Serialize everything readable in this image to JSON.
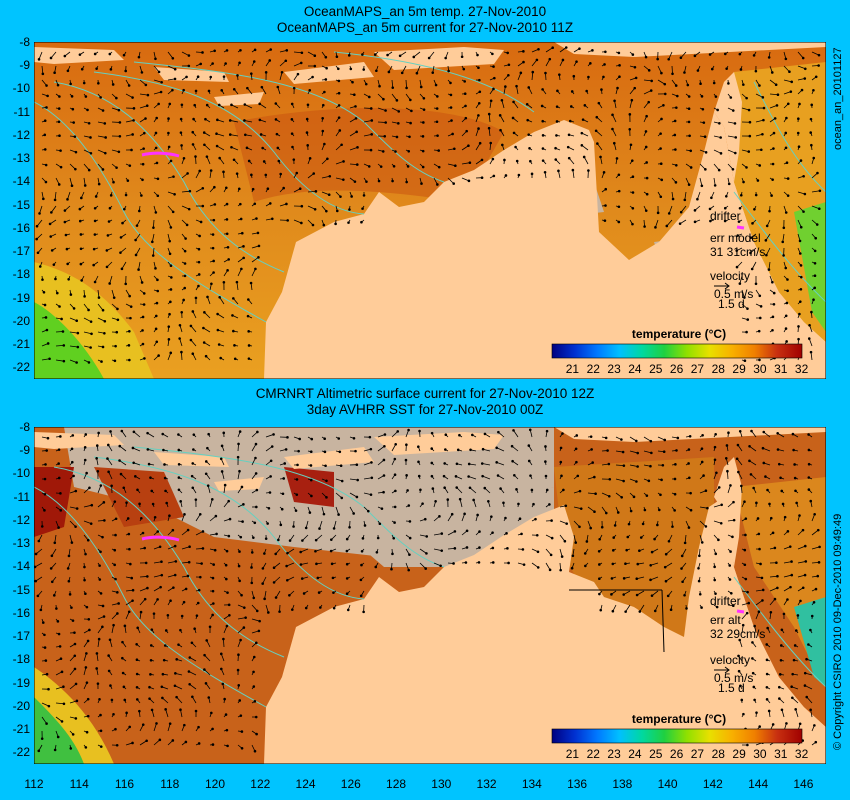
{
  "panels": [
    {
      "title_line1": "OceanMAPS_an 5m temp. 27-Nov-2010",
      "title_line2": "OceanMAPS_an 5m current for 27-Nov-2010 11Z",
      "legend": {
        "drifter": "drifter",
        "err_label": "err model",
        "err_values": "31 31cm/s",
        "velocity": "velocity",
        "velocity_value": "0.5 m/s",
        "velocity_time": "1.5 d"
      },
      "colorbar": {
        "title": "temperature (°C)",
        "ticks": [
          "21",
          "22",
          "23",
          "24",
          "25",
          "26",
          "27",
          "28",
          "29",
          "30",
          "31",
          "32"
        ]
      },
      "side_label": "ocean_an_20101127"
    },
    {
      "title_line1": "CMRNRT Altimetric surface current for 27-Nov-2010 12Z",
      "title_line2": "3day AVHRR SST for 27-Nov-2010 00Z",
      "legend": {
        "drifter": "drifter",
        "err_label": "err alt",
        "err_values": "32 29cm/s",
        "velocity": "velocity",
        "velocity_value": "0.5 m/s",
        "velocity_time": "1.5 d"
      },
      "colorbar": {
        "title": "temperature (°C)",
        "ticks": [
          "21",
          "22",
          "23",
          "24",
          "25",
          "26",
          "27",
          "28",
          "29",
          "30",
          "31",
          "32"
        ]
      },
      "side_label": "© Copyright CSIRO 2010  09-Dec-2010 09:49:49"
    }
  ],
  "y_ticks": [
    "-8",
    "-9",
    "-10",
    "-11",
    "-12",
    "-13",
    "-14",
    "-15",
    "-16",
    "-17",
    "-18",
    "-19",
    "-20",
    "-21",
    "-22"
  ],
  "x_ticks": [
    "112",
    "114",
    "116",
    "118",
    "120",
    "122",
    "124",
    "126",
    "128",
    "130",
    "132",
    "134",
    "136",
    "138",
    "140",
    "142",
    "144",
    "146"
  ],
  "map_extent": {
    "lon": [
      112,
      147
    ],
    "lat": [
      -22.5,
      -8
    ]
  },
  "colors": {
    "background": "#00c4ff",
    "land": "#ffcc99",
    "no_data": "#c8b4a0",
    "isobath": "#66d0c0",
    "drifter": "#ff33ff",
    "colorbar": [
      "#000080",
      "#0030d0",
      "#0070ff",
      "#00b0ff",
      "#00d8c0",
      "#00d060",
      "#40e000",
      "#b0e800",
      "#f8d800",
      "#f8a000",
      "#e06010",
      "#c02008",
      "#a00000"
    ]
  }
}
